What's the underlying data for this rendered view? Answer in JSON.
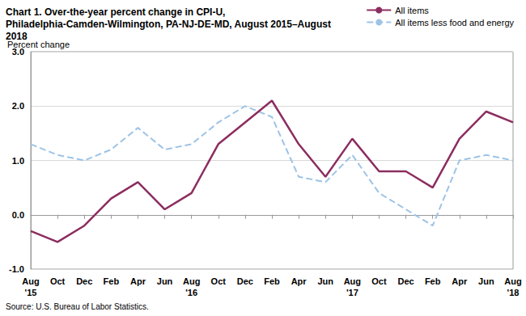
{
  "chart_data": {
    "type": "line",
    "title": "Chart 1. Over-the-year percent change in CPI-U, Philadelphia-Camden-Wilmington, PA-NJ-DE-MD, August 2015–August 2018",
    "y_label": "Percent change",
    "source": "Source: U.S. Bureau of Labor Statistics.",
    "categories": [
      "Aug\n'15",
      "Oct",
      "Dec",
      "Feb",
      "Apr",
      "Jun",
      "Aug\n'16",
      "Oct",
      "Dec",
      "Feb",
      "Apr",
      "Jun",
      "Aug\n'17",
      "Oct",
      "Dec",
      "Feb",
      "Apr",
      "Jun",
      "Aug\n'18"
    ],
    "series": [
      {
        "name": "All items",
        "color": "#8c2d5f",
        "line_style": "solid",
        "values": [
          -0.3,
          -0.5,
          -0.2,
          0.3,
          0.6,
          0.1,
          0.4,
          1.3,
          1.7,
          2.1,
          1.3,
          0.7,
          1.4,
          0.8,
          0.8,
          0.5,
          1.4,
          1.9,
          1.7
        ]
      },
      {
        "name": "All items less food and energy",
        "color": "#9dc3e6",
        "line_style": "dashed",
        "values": [
          1.3,
          1.1,
          1.0,
          1.2,
          1.6,
          1.2,
          1.3,
          1.7,
          2.0,
          1.8,
          0.7,
          0.6,
          1.1,
          0.4,
          0.1,
          -0.2,
          1.0,
          1.1,
          1.0
        ]
      }
    ],
    "ylim": [
      -1.0,
      3.0
    ],
    "yticks": [
      {
        "value": -1.0,
        "label": "-1.0"
      },
      {
        "value": 0.0,
        "label": "0.0"
      },
      {
        "value": 1.0,
        "label": "1.0"
      },
      {
        "value": 2.0,
        "label": "2.0"
      },
      {
        "value": 3.0,
        "label": "3.0"
      }
    ],
    "grid": true,
    "legend": "top-right",
    "marker": "none"
  }
}
